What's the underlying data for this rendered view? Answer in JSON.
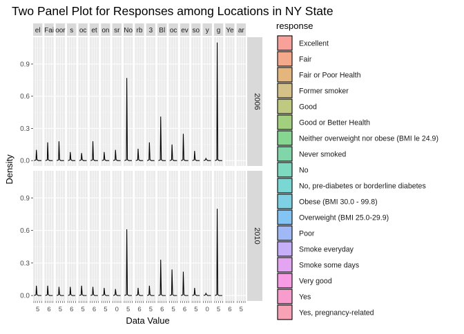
{
  "chart_data": {
    "type": "area",
    "title": "Two Panel Plot for Responses among Locations in NY State",
    "xlabel": "Data Value",
    "ylabel": "Density",
    "legend_title": "response",
    "legend_position": "right",
    "grid": true,
    "ylim": [
      -0.05,
      1.15
    ],
    "yticks": [
      0.0,
      0.3,
      0.6,
      0.9
    ],
    "ytick_labels": [
      "0.0",
      "0.3",
      "0.6",
      "0.9"
    ],
    "facet_rows": [
      "2006",
      "2010"
    ],
    "facet_columns": [
      "el",
      "Fai",
      "oor",
      "s",
      "oc",
      "et",
      "on",
      "sr",
      "No",
      "rb",
      "3",
      "Bl",
      "oc",
      "ev",
      "so",
      "y",
      "g",
      "Ye",
      "ar"
    ],
    "x_tick_fragments": [
      "5",
      "6",
      "5",
      "6",
      "5",
      "6",
      "5",
      "0"
    ],
    "legend_entries": [
      {
        "label": "Excellent",
        "color": "#F8A19B"
      },
      {
        "label": "Fair",
        "color": "#F4A98B"
      },
      {
        "label": "Fair or Poor Health",
        "color": "#E5B57E"
      },
      {
        "label": "Former smoker",
        "color": "#D4C188"
      },
      {
        "label": "Good",
        "color": "#BFC97F"
      },
      {
        "label": "Good or Better Health",
        "color": "#A3D07E"
      },
      {
        "label": "Neither overweight nor obese (BMI le 24.9)",
        "color": "#86D591"
      },
      {
        "label": "Never smoked",
        "color": "#80D6A9"
      },
      {
        "label": "No",
        "color": "#7DD9C0"
      },
      {
        "label": "No, pre-diabetes or borderline diabetes",
        "color": "#7BD7D3"
      },
      {
        "label": "Obese (BMI 30.0 - 99.8)",
        "color": "#7ED0E4"
      },
      {
        "label": "Overweight (BMI 25.0-29.9)",
        "color": "#84C4F3"
      },
      {
        "label": "Poor",
        "color": "#A1B8F6"
      },
      {
        "label": "Smoke everyday",
        "color": "#C7AEF8"
      },
      {
        "label": "Smoke some days",
        "color": "#E3A4F1"
      },
      {
        "label": "Very good",
        "color": "#F69BE4"
      },
      {
        "label": "Yes",
        "color": "#F89BCD"
      },
      {
        "label": "Yes, pregnancy-related",
        "color": "#F8A2B5"
      }
    ],
    "series": [
      {
        "panel": "2006",
        "peaks": [
          0.1,
          0.17,
          0.18,
          0.08,
          0.07,
          0.18,
          0.08,
          0.1,
          0.77,
          0.11,
          0.17,
          0.41,
          0.15,
          0.25,
          0.09,
          0.02,
          1.1
        ]
      },
      {
        "panel": "2010",
        "peaks": [
          0.09,
          0.09,
          0.08,
          0.08,
          0.09,
          0.08,
          0.07,
          0.06,
          0.61,
          0.07,
          0.09,
          0.33,
          0.24,
          0.22,
          0.07,
          0.02,
          0.8
        ]
      }
    ]
  }
}
